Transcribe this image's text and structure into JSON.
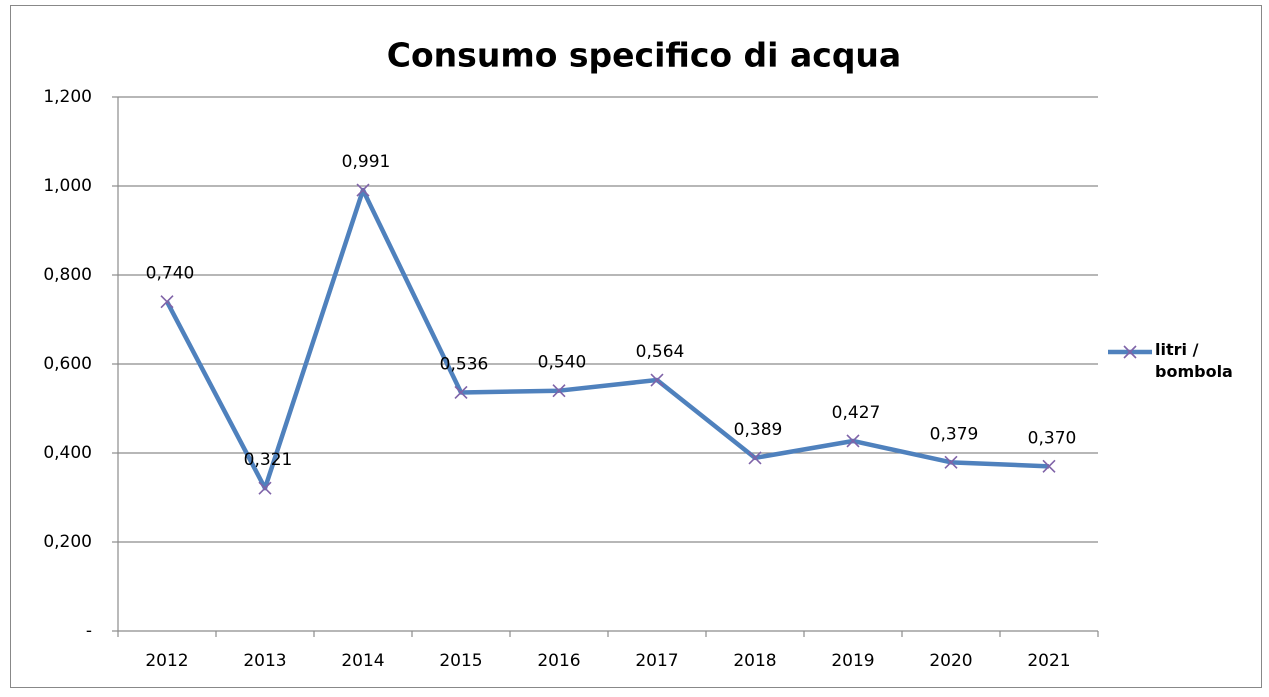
{
  "chart_data": {
    "type": "line",
    "title": "Consumo specifico di acqua",
    "categories": [
      "2012",
      "2013",
      "2014",
      "2015",
      "2016",
      "2017",
      "2018",
      "2019",
      "2020",
      "2021"
    ],
    "series": [
      {
        "name": "litri / bombola",
        "color": "#4f81bd",
        "marker_color": "#7f63a8",
        "values": [
          0.74,
          0.321,
          0.991,
          0.536,
          0.54,
          0.564,
          0.389,
          0.427,
          0.379,
          0.37
        ],
        "value_labels": [
          "0,740",
          "0,321",
          "0,991",
          "0,536",
          "0,540",
          "0,564",
          "0,389",
          "0,427",
          "0,379",
          "0,370"
        ]
      }
    ],
    "ylim": [
      0,
      1.2
    ],
    "yticks": [
      {
        "value": 0,
        "label": "-"
      },
      {
        "value": 0.2,
        "label": "0,200"
      },
      {
        "value": 0.4,
        "label": "0,400"
      },
      {
        "value": 0.6,
        "label": "0,600"
      },
      {
        "value": 0.8,
        "label": "0,800"
      },
      {
        "value": 1.0,
        "label": "1,000"
      },
      {
        "value": 1.2,
        "label": "1,200"
      }
    ],
    "grid": true,
    "legend": "right"
  }
}
